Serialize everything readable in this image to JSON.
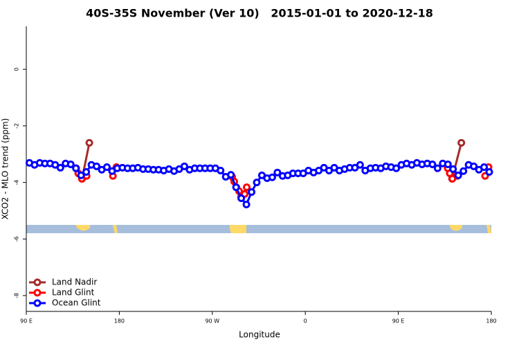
{
  "chart_data": {
    "type": "line",
    "title": "40S-35S November (Ver 10)   2015-01-01 to 2020-12-18",
    "x_label": "Longitude",
    "y_label": "XCO2 - MLO trend (ppm)",
    "xlim": [
      90,
      540
    ],
    "xticks": [
      {
        "value": 90,
        "label": "90 E"
      },
      180,
      {
        "value": 270,
        "label": "90 W"
      },
      {
        "value": 360,
        "label": "0"
      },
      {
        "value": 450,
        "label": "90 E"
      },
      {
        "value": 540,
        "label": "180"
      }
    ],
    "ylim": [
      -8.56,
      1.52
    ],
    "yticks": [
      0,
      -2,
      -4,
      -6,
      -8
    ],
    "legend": "bottom-left",
    "series": [
      {
        "name": "Land Nadir",
        "color": "#a52a2a",
        "x": [
          144,
          151,
          300,
          502,
          511
        ],
        "values": [
          -3.87,
          -2.6,
          null,
          -3.87,
          -2.6
        ]
      },
      {
        "name": "Land Glint",
        "color": "#ff0000",
        "x": [
          138.3,
          140.3,
          143.7,
          148.4,
          160,
          173.8,
          177.2,
          280,
          289.2,
          291.2,
          293.2,
          295.9,
          297.9,
          301.3,
          303.3,
          400,
          497.8,
          499.8,
          502.3,
          507.2,
          520,
          534,
          537.3
        ],
        "values": [
          -3.5,
          -3.68,
          -3.87,
          -3.77,
          null,
          -3.77,
          -3.46,
          null,
          -3.8,
          -3.97,
          -4.17,
          -4.31,
          -4.51,
          -4.41,
          -4.17,
          null,
          -3.5,
          -3.68,
          -3.87,
          -3.77,
          null,
          -3.77,
          -3.46
        ]
      },
      {
        "name": "Ocean Glint",
        "color": "#0000ff",
        "x": [
          93,
          98,
          103,
          108,
          113,
          118,
          123,
          128,
          133,
          138,
          143,
          148,
          153,
          158,
          163,
          168,
          173,
          178,
          183,
          188,
          193,
          198,
          203,
          208,
          213,
          218,
          223,
          228,
          233,
          238,
          243,
          248,
          253,
          258,
          263,
          268,
          273,
          278,
          283,
          288,
          293,
          298,
          303,
          308,
          313,
          318,
          323,
          328,
          333,
          338,
          343,
          348,
          353,
          358,
          363,
          368,
          373,
          378,
          383,
          388,
          393,
          398,
          403,
          408,
          413,
          418,
          423,
          428,
          433,
          438,
          443,
          448,
          453,
          458,
          463,
          468,
          473,
          478,
          483,
          488,
          493,
          498,
          503,
          508,
          513,
          518,
          523,
          528,
          533,
          538
        ],
        "values": [
          -3.31,
          -3.38,
          -3.31,
          -3.33,
          -3.33,
          -3.38,
          -3.48,
          -3.33,
          -3.36,
          -3.5,
          -3.75,
          -3.63,
          -3.38,
          -3.43,
          -3.55,
          -3.46,
          -3.6,
          -3.5,
          -3.48,
          -3.5,
          -3.5,
          -3.48,
          -3.53,
          -3.53,
          -3.55,
          -3.55,
          -3.58,
          -3.53,
          -3.6,
          -3.53,
          -3.43,
          -3.55,
          -3.5,
          -3.5,
          -3.5,
          -3.5,
          -3.5,
          -3.58,
          -3.8,
          -3.73,
          -4.17,
          -4.56,
          -4.78,
          -4.34,
          -4.0,
          -3.75,
          -3.85,
          -3.82,
          -3.65,
          -3.77,
          -3.75,
          -3.68,
          -3.68,
          -3.68,
          -3.58,
          -3.65,
          -3.58,
          -3.48,
          -3.58,
          -3.48,
          -3.58,
          -3.53,
          -3.48,
          -3.48,
          -3.38,
          -3.58,
          -3.5,
          -3.48,
          -3.5,
          -3.43,
          -3.46,
          -3.5,
          -3.38,
          -3.33,
          -3.38,
          -3.31,
          -3.36,
          -3.33,
          -3.36,
          -3.5,
          -3.33,
          -3.36,
          -3.53,
          -3.75,
          -3.6,
          -3.38,
          -3.43,
          -3.55,
          -3.46,
          -3.63
        ]
      }
    ]
  }
}
